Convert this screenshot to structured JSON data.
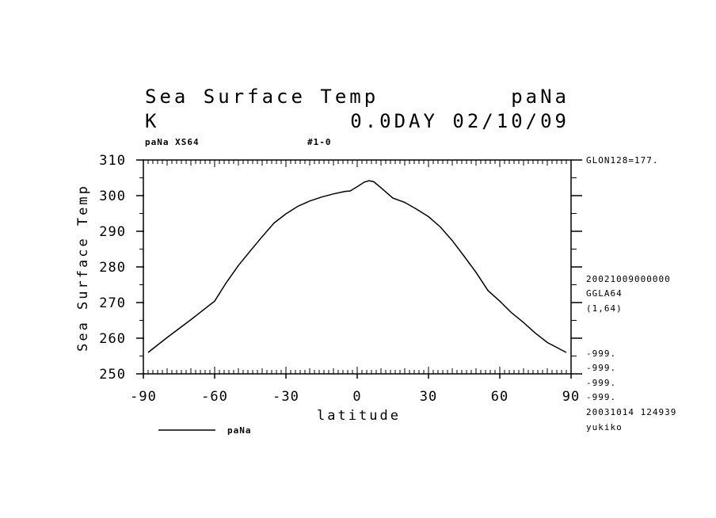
{
  "header": {
    "title_left": "Sea Surface Temp",
    "title_right": "paNa",
    "unit": "K",
    "time": "0.0DAY 02/10/09",
    "sub_left": "paNa XS64",
    "sub_mid": "#1-0"
  },
  "side_info": {
    "glon": "GLON128=177.",
    "date_code": "20021009000000",
    "grid": "GGLA64",
    "index": "(1,64)",
    "missing": [
      "-999.",
      "-999.",
      "-999.",
      "-999."
    ],
    "stamp": "20031014 124939",
    "user": "yukiko"
  },
  "chart_data": {
    "type": "line",
    "title": "Sea Surface Temp",
    "xlabel": "latitude",
    "ylabel": "Sea Surface Temp",
    "xlim": [
      -90,
      90
    ],
    "ylim": [
      250,
      310
    ],
    "x_ticks": [
      -90,
      -60,
      -30,
      0,
      30,
      60,
      90
    ],
    "y_ticks": [
      250,
      260,
      270,
      280,
      290,
      300,
      310
    ],
    "x_tick_labels": [
      "-90",
      "-60",
      "-30",
      "0",
      "30",
      "60",
      "90"
    ],
    "y_tick_labels": [
      "250",
      "260",
      "270",
      "280",
      "290",
      "300",
      "310"
    ],
    "legend": "bottom-left",
    "series": [
      {
        "name": "paNa",
        "x": [
          -88,
          -80,
          -70,
          -60,
          -55,
          -50,
          -45,
          -40,
          -35,
          -30,
          -25,
          -20,
          -15,
          -10,
          -5,
          -3,
          0,
          3,
          5,
          7,
          10,
          15,
          20,
          25,
          30,
          35,
          40,
          45,
          50,
          55,
          60,
          65,
          70,
          75,
          80,
          88
        ],
        "y": [
          256,
          260.2,
          265.2,
          270.4,
          275.7,
          280.4,
          284.5,
          288.5,
          292.3,
          294.9,
          297.0,
          298.5,
          299.6,
          300.5,
          301.2,
          301.3,
          302.5,
          303.8,
          304.2,
          303.9,
          302.2,
          299.3,
          298.1,
          296.2,
          294.1,
          291.2,
          287.4,
          283.0,
          278.5,
          273.4,
          270.4,
          267.1,
          264.4,
          261.4,
          258.8,
          256
        ]
      }
    ]
  }
}
